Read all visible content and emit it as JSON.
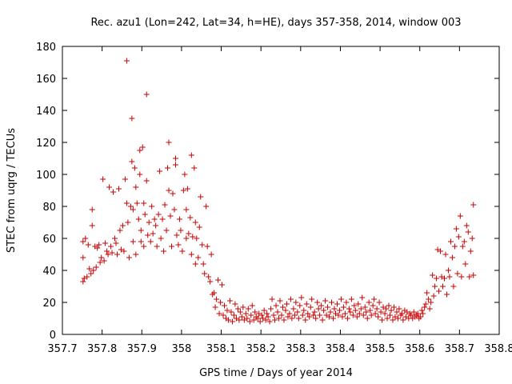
{
  "chart_data": {
    "type": "scatter",
    "title": "Rec. azu1 (Lon=242, Lat=34, h=HE), days 357-358, 2014, window 003",
    "xlabel": "GPS time / Days of year 2014",
    "ylabel": "STEC from uqrg / TECUs",
    "xlim": [
      357.7,
      358.8
    ],
    "ylim": [
      0,
      180
    ],
    "xticks": [
      357.7,
      357.8,
      357.9,
      358,
      358.1,
      358.2,
      358.3,
      358.4,
      358.5,
      358.6,
      358.7,
      358.8
    ],
    "xtick_labels": [
      "357.7",
      "357.8",
      "357.9",
      "358",
      "358.1",
      "358.2",
      "358.3",
      "358.4",
      "358.5",
      "358.6",
      "358.7",
      "358.8"
    ],
    "yticks": [
      0,
      20,
      40,
      60,
      80,
      100,
      120,
      140,
      160,
      180
    ],
    "ytick_labels": [
      "0",
      "20",
      "40",
      "60",
      "80",
      "100",
      "120",
      "140",
      "160",
      "180"
    ],
    "grid": false,
    "marker": "+",
    "color": "#cc0000",
    "points": [
      [
        357.752,
        33
      ],
      [
        357.752,
        48
      ],
      [
        357.752,
        58
      ],
      [
        357.755,
        35
      ],
      [
        357.758,
        60
      ],
      [
        357.762,
        36
      ],
      [
        357.765,
        56
      ],
      [
        357.768,
        41
      ],
      [
        357.772,
        38
      ],
      [
        357.775,
        78
      ],
      [
        357.775,
        68
      ],
      [
        357.778,
        40
      ],
      [
        357.782,
        55
      ],
      [
        357.785,
        42
      ],
      [
        357.788,
        54
      ],
      [
        357.792,
        56
      ],
      [
        357.795,
        45
      ],
      [
        357.798,
        48
      ],
      [
        357.802,
        97
      ],
      [
        357.805,
        46
      ],
      [
        357.808,
        57
      ],
      [
        357.812,
        52
      ],
      [
        357.815,
        50
      ],
      [
        357.818,
        92
      ],
      [
        357.822,
        55
      ],
      [
        357.825,
        51
      ],
      [
        357.828,
        89
      ],
      [
        357.832,
        60
      ],
      [
        357.835,
        57
      ],
      [
        357.838,
        50
      ],
      [
        357.842,
        91
      ],
      [
        357.845,
        65
      ],
      [
        357.848,
        53
      ],
      [
        357.852,
        68
      ],
      [
        357.855,
        52
      ],
      [
        357.858,
        97
      ],
      [
        357.862,
        171
      ],
      [
        357.862,
        82
      ],
      [
        357.865,
        70
      ],
      [
        357.868,
        48
      ],
      [
        357.872,
        80
      ],
      [
        357.875,
        135
      ],
      [
        357.875,
        108
      ],
      [
        357.878,
        78
      ],
      [
        357.878,
        58
      ],
      [
        357.882,
        104
      ],
      [
        357.885,
        92
      ],
      [
        357.885,
        50
      ],
      [
        357.888,
        82
      ],
      [
        357.892,
        72
      ],
      [
        357.895,
        115
      ],
      [
        357.895,
        100
      ],
      [
        357.898,
        65
      ],
      [
        357.898,
        58
      ],
      [
        357.902,
        117
      ],
      [
        357.905,
        82
      ],
      [
        357.905,
        55
      ],
      [
        357.908,
        75
      ],
      [
        357.912,
        150
      ],
      [
        357.912,
        96
      ],
      [
        357.915,
        62
      ],
      [
        357.918,
        70
      ],
      [
        357.922,
        58
      ],
      [
        357.925,
        80
      ],
      [
        357.928,
        63
      ],
      [
        357.932,
        72
      ],
      [
        357.935,
        68
      ],
      [
        357.938,
        55
      ],
      [
        357.942,
        75
      ],
      [
        357.945,
        102
      ],
      [
        357.948,
        60
      ],
      [
        357.952,
        72
      ],
      [
        357.955,
        52
      ],
      [
        357.958,
        81
      ],
      [
        357.962,
        65
      ],
      [
        357.965,
        104
      ],
      [
        357.968,
        120
      ],
      [
        357.968,
        90
      ],
      [
        357.972,
        74
      ],
      [
        357.975,
        55
      ],
      [
        357.978,
        88
      ],
      [
        357.982,
        78
      ],
      [
        357.985,
        110
      ],
      [
        357.985,
        106
      ],
      [
        357.988,
        62
      ],
      [
        357.992,
        56
      ],
      [
        357.995,
        72
      ],
      [
        357.998,
        65
      ],
      [
        358.002,
        52
      ],
      [
        358.005,
        90
      ],
      [
        358.008,
        100
      ],
      [
        358.012,
        78
      ],
      [
        358.012,
        60
      ],
      [
        358.015,
        91
      ],
      [
        358.018,
        63
      ],
      [
        358.022,
        73
      ],
      [
        358.025,
        112
      ],
      [
        358.025,
        50
      ],
      [
        358.028,
        61
      ],
      [
        358.032,
        104
      ],
      [
        358.035,
        70
      ],
      [
        358.035,
        44
      ],
      [
        358.038,
        60
      ],
      [
        358.042,
        48
      ],
      [
        358.045,
        67
      ],
      [
        358.048,
        86
      ],
      [
        358.052,
        56
      ],
      [
        358.055,
        44
      ],
      [
        358.058,
        38
      ],
      [
        358.062,
        80
      ],
      [
        358.065,
        55
      ],
      [
        358.068,
        36
      ],
      [
        358.072,
        33
      ],
      [
        358.075,
        50
      ],
      [
        358.078,
        25
      ],
      [
        358.082,
        26
      ],
      [
        358.085,
        17
      ],
      [
        358.088,
        22
      ],
      [
        358.092,
        34
      ],
      [
        358.095,
        13
      ],
      [
        358.098,
        20
      ],
      [
        358.102,
        31
      ],
      [
        358.105,
        12
      ],
      [
        358.108,
        18
      ],
      [
        358.112,
        10
      ],
      [
        358.115,
        15
      ],
      [
        358.118,
        9
      ],
      [
        358.122,
        21
      ],
      [
        358.125,
        14
      ],
      [
        358.128,
        8
      ],
      [
        358.132,
        12
      ],
      [
        358.135,
        19
      ],
      [
        358.138,
        10
      ],
      [
        358.142,
        16
      ],
      [
        358.145,
        9
      ],
      [
        358.148,
        14
      ],
      [
        358.152,
        11
      ],
      [
        358.155,
        17
      ],
      [
        358.158,
        9
      ],
      [
        358.162,
        13
      ],
      [
        358.165,
        10
      ],
      [
        358.168,
        16
      ],
      [
        358.172,
        8
      ],
      [
        358.175,
        12
      ],
      [
        358.178,
        18
      ],
      [
        358.182,
        9
      ],
      [
        358.185,
        14
      ],
      [
        358.188,
        11
      ],
      [
        358.192,
        10
      ],
      [
        358.195,
        13
      ],
      [
        358.198,
        8
      ],
      [
        358.202,
        12
      ],
      [
        358.205,
        10
      ],
      [
        358.208,
        15
      ],
      [
        358.212,
        9
      ],
      [
        358.215,
        13
      ],
      [
        358.218,
        11
      ],
      [
        358.222,
        8
      ],
      [
        358.225,
        16
      ],
      [
        358.228,
        22
      ],
      [
        358.232,
        12
      ],
      [
        358.235,
        9
      ],
      [
        358.238,
        18
      ],
      [
        358.242,
        14
      ],
      [
        358.245,
        10
      ],
      [
        358.248,
        21
      ],
      [
        358.252,
        12
      ],
      [
        358.255,
        17
      ],
      [
        358.258,
        9
      ],
      [
        358.262,
        15
      ],
      [
        358.265,
        19
      ],
      [
        358.268,
        11
      ],
      [
        358.272,
        13
      ],
      [
        358.275,
        22
      ],
      [
        358.278,
        10
      ],
      [
        358.282,
        16
      ],
      [
        358.285,
        12
      ],
      [
        358.288,
        20
      ],
      [
        358.292,
        14
      ],
      [
        358.295,
        10
      ],
      [
        358.298,
        18
      ],
      [
        358.302,
        23
      ],
      [
        358.305,
        12
      ],
      [
        358.308,
        15
      ],
      [
        358.312,
        9
      ],
      [
        358.315,
        19
      ],
      [
        358.318,
        13
      ],
      [
        358.322,
        11
      ],
      [
        358.325,
        17
      ],
      [
        358.328,
        22
      ],
      [
        358.332,
        12
      ],
      [
        358.335,
        14
      ],
      [
        358.338,
        10
      ],
      [
        358.342,
        20
      ],
      [
        358.345,
        16
      ],
      [
        358.348,
        12
      ],
      [
        358.352,
        18
      ],
      [
        358.355,
        9
      ],
      [
        358.358,
        15
      ],
      [
        358.362,
        21
      ],
      [
        358.365,
        12
      ],
      [
        358.368,
        17
      ],
      [
        358.372,
        11
      ],
      [
        358.375,
        14
      ],
      [
        358.378,
        20
      ],
      [
        358.382,
        10
      ],
      [
        358.385,
        16
      ],
      [
        358.388,
        13
      ],
      [
        358.392,
        19
      ],
      [
        358.395,
        12
      ],
      [
        358.398,
        15
      ],
      [
        358.402,
        22
      ],
      [
        358.405,
        11
      ],
      [
        358.408,
        17
      ],
      [
        358.412,
        13
      ],
      [
        358.415,
        20
      ],
      [
        358.418,
        10
      ],
      [
        358.422,
        16
      ],
      [
        358.425,
        14
      ],
      [
        358.428,
        22
      ],
      [
        358.432,
        12
      ],
      [
        358.435,
        18
      ],
      [
        358.438,
        15
      ],
      [
        358.442,
        11
      ],
      [
        358.445,
        19
      ],
      [
        358.448,
        13
      ],
      [
        358.452,
        16
      ],
      [
        358.455,
        23
      ],
      [
        358.458,
        12
      ],
      [
        358.462,
        17
      ],
      [
        358.465,
        14
      ],
      [
        358.468,
        10
      ],
      [
        358.472,
        20
      ],
      [
        358.475,
        15
      ],
      [
        358.478,
        12
      ],
      [
        358.482,
        18
      ],
      [
        358.485,
        22
      ],
      [
        358.488,
        13
      ],
      [
        358.492,
        16
      ],
      [
        358.495,
        11
      ],
      [
        358.498,
        20
      ],
      [
        358.502,
        14
      ],
      [
        358.505,
        9
      ],
      [
        358.508,
        17
      ],
      [
        358.512,
        13
      ],
      [
        358.515,
        16
      ],
      [
        358.518,
        10
      ],
      [
        358.522,
        18
      ],
      [
        358.525,
        12
      ],
      [
        358.528,
        15
      ],
      [
        358.532,
        9
      ],
      [
        358.535,
        17
      ],
      [
        358.538,
        11
      ],
      [
        358.542,
        14
      ],
      [
        358.545,
        10
      ],
      [
        358.548,
        16
      ],
      [
        358.552,
        12
      ],
      [
        358.555,
        13
      ],
      [
        358.558,
        9
      ],
      [
        358.562,
        15
      ],
      [
        358.565,
        11
      ],
      [
        358.568,
        14
      ],
      [
        358.572,
        10
      ],
      [
        358.575,
        13
      ],
      [
        358.578,
        12
      ],
      [
        358.582,
        10
      ],
      [
        358.585,
        14
      ],
      [
        358.588,
        11
      ],
      [
        358.592,
        12
      ],
      [
        358.595,
        13
      ],
      [
        358.598,
        10
      ],
      [
        358.602,
        11
      ],
      [
        358.605,
        15
      ],
      [
        358.608,
        13
      ],
      [
        358.612,
        17
      ],
      [
        358.615,
        19
      ],
      [
        358.618,
        26
      ],
      [
        358.622,
        22
      ],
      [
        358.625,
        16
      ],
      [
        358.628,
        20
      ],
      [
        358.632,
        37
      ],
      [
        358.635,
        24
      ],
      [
        358.638,
        30
      ],
      [
        358.642,
        35
      ],
      [
        358.645,
        53
      ],
      [
        358.648,
        27
      ],
      [
        358.652,
        52
      ],
      [
        358.655,
        36
      ],
      [
        358.658,
        30
      ],
      [
        358.662,
        35
      ],
      [
        358.665,
        50
      ],
      [
        358.668,
        25
      ],
      [
        358.672,
        40
      ],
      [
        358.675,
        36
      ],
      [
        358.678,
        58
      ],
      [
        358.682,
        48
      ],
      [
        358.685,
        30
      ],
      [
        358.688,
        55
      ],
      [
        358.692,
        66
      ],
      [
        358.695,
        38
      ],
      [
        358.698,
        61
      ],
      [
        358.702,
        74
      ],
      [
        358.705,
        36
      ],
      [
        358.708,
        55
      ],
      [
        358.712,
        58
      ],
      [
        358.715,
        44
      ],
      [
        358.718,
        68
      ],
      [
        358.722,
        64
      ],
      [
        358.725,
        36
      ],
      [
        358.728,
        52
      ],
      [
        358.732,
        60
      ],
      [
        358.735,
        81
      ],
      [
        358.735,
        37
      ]
    ]
  }
}
